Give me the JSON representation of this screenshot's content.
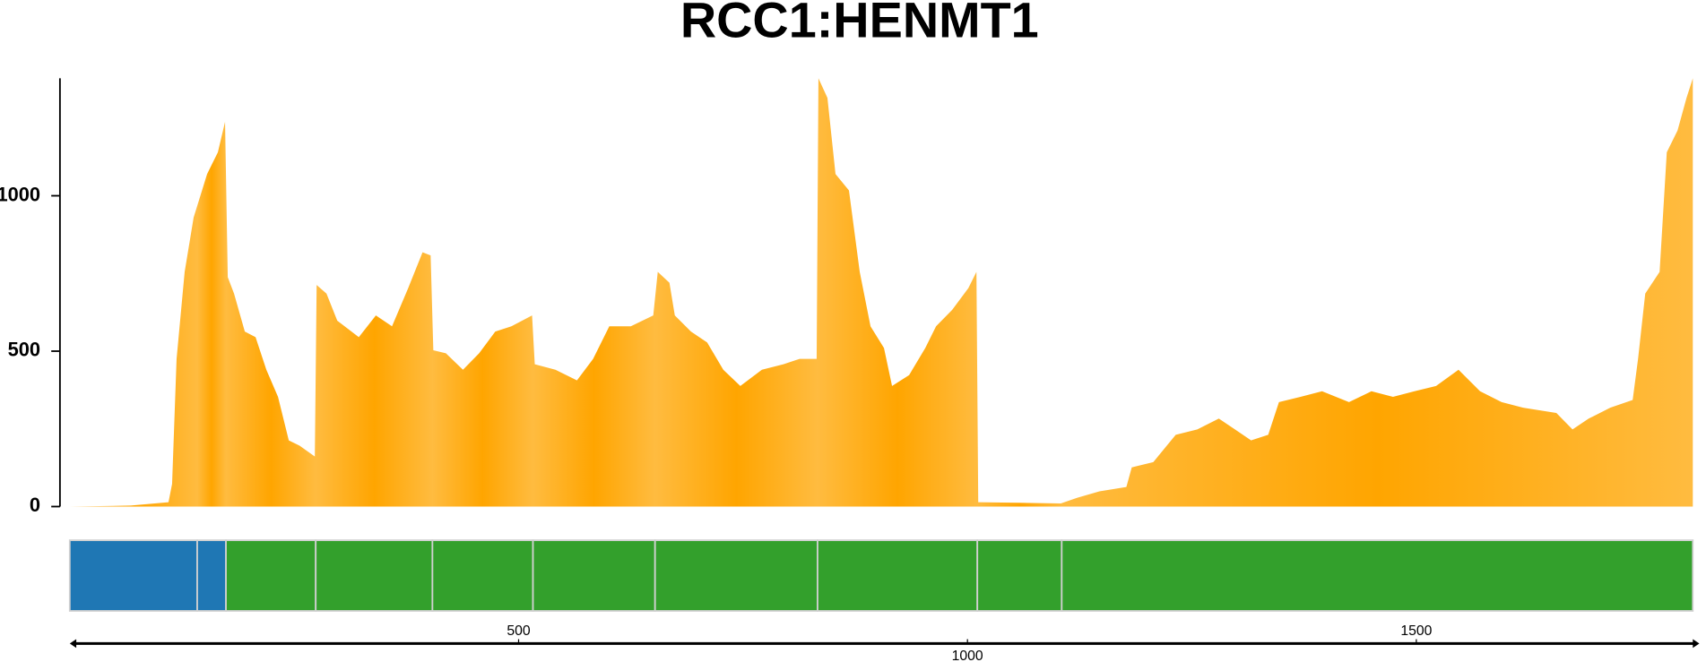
{
  "chart_data": {
    "type": "area",
    "title": "RCC1:HENMT1",
    "color": "#ffa500",
    "x": [
      0,
      68,
      110,
      114,
      119,
      128,
      138,
      153,
      165,
      173,
      176,
      183,
      195,
      207,
      219,
      232,
      244,
      256,
      273,
      275,
      286,
      298,
      322,
      341,
      359,
      377,
      393,
      402,
      405,
      419,
      438,
      456,
      474,
      492,
      515,
      518,
      541,
      565,
      583,
      601,
      625,
      650,
      655,
      668,
      674,
      692,
      710,
      728,
      747,
      771,
      795,
      813,
      832,
      834,
      844,
      853,
      868,
      880,
      892,
      907,
      916,
      935,
      953,
      965,
      983,
      1001,
      1010,
      1012,
      1104,
      1122,
      1147,
      1177,
      1183,
      1207,
      1232,
      1256,
      1280,
      1298,
      1316,
      1335,
      1347,
      1371,
      1395,
      1425,
      1450,
      1474,
      1498,
      1522,
      1547,
      1571,
      1595,
      1619,
      1656,
      1674,
      1692,
      1716,
      1741,
      1747,
      1755,
      1771,
      1779,
      1791,
      1801,
      1808
    ],
    "values": [
      0,
      3,
      14,
      73,
      475,
      755,
      930,
      1070,
      1140,
      1238,
      738,
      685,
      563,
      545,
      440,
      353,
      213,
      196,
      161,
      713,
      685,
      598,
      545,
      615,
      580,
      703,
      818,
      808,
      503,
      493,
      440,
      493,
      563,
      580,
      615,
      458,
      440,
      406,
      475,
      580,
      580,
      615,
      755,
      720,
      615,
      563,
      528,
      440,
      388,
      440,
      458,
      475,
      475,
      1378,
      1315,
      1070,
      1017,
      755,
      580,
      510,
      388,
      423,
      510,
      580,
      633,
      703,
      755,
      14,
      10,
      28,
      49,
      63,
      126,
      143,
      231,
      248,
      283,
      248,
      213,
      231,
      336,
      353,
      371,
      336,
      371,
      353,
      371,
      388,
      440,
      371,
      336,
      318,
      301,
      248,
      283,
      318,
      343,
      475,
      685,
      755,
      1140,
      1210,
      1315,
      1378
    ],
    "xlim": [
      0,
      1808
    ],
    "ylim": [
      0,
      1378
    ],
    "xticks": [
      500,
      1000,
      1500
    ],
    "yticks": [
      0,
      500,
      1000
    ],
    "exons": [
      {
        "start": 0,
        "end": 142,
        "color": "#1f77b4"
      },
      {
        "start": 142,
        "end": 174,
        "color": "#1f77b4"
      },
      {
        "start": 174,
        "end": 274,
        "color": "#33a02c"
      },
      {
        "start": 274,
        "end": 404,
        "color": "#33a02c"
      },
      {
        "start": 404,
        "end": 516,
        "color": "#33a02c"
      },
      {
        "start": 516,
        "end": 652,
        "color": "#33a02c"
      },
      {
        "start": 652,
        "end": 833,
        "color": "#33a02c"
      },
      {
        "start": 833,
        "end": 1011,
        "color": "#33a02c"
      },
      {
        "start": 1011,
        "end": 1105,
        "color": "#33a02c"
      },
      {
        "start": 1105,
        "end": 1808,
        "color": "#33a02c"
      }
    ]
  }
}
